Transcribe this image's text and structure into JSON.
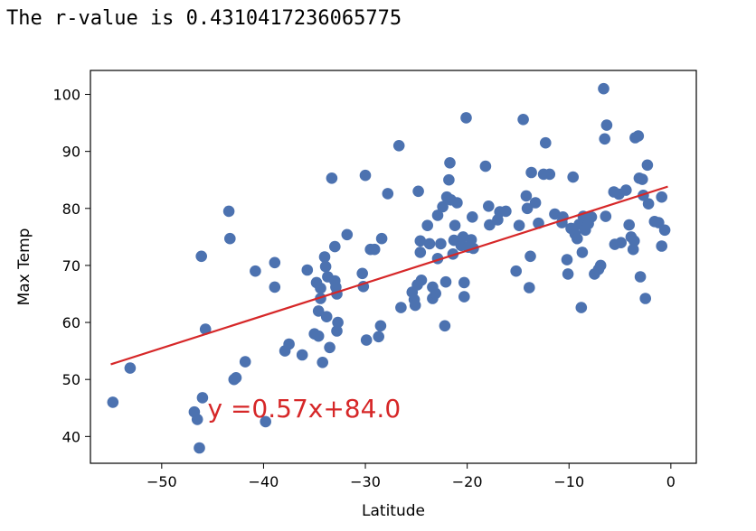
{
  "output": {
    "text": "The r-value is 0.4310417236065775"
  },
  "chart_data": {
    "type": "scatter",
    "title": "",
    "xlabel": "Latitude",
    "ylabel": "Max Temp",
    "xlim": [
      -57,
      2.5
    ],
    "ylim": [
      35.3,
      104.2
    ],
    "xticks": [
      -50,
      -40,
      -30,
      -20,
      -10,
      0
    ],
    "xtick_labels": [
      "−50",
      "−40",
      "−30",
      "−20",
      "−10",
      "0"
    ],
    "yticks": [
      40,
      50,
      60,
      70,
      80,
      90,
      100
    ],
    "ytick_labels": [
      "40",
      "50",
      "60",
      "70",
      "80",
      "90",
      "100"
    ],
    "grid": false,
    "point_color": "#4c72b0",
    "line_color": "#d62728",
    "regression": {
      "slope": 0.57,
      "intercept": 84.0,
      "x_start": -55,
      "x_end": -0.3,
      "equation_text": "y =0.57x+84.0",
      "equation_anchor": [
        -45.5,
        45
      ]
    },
    "points": [
      [
        -54.8,
        46
      ],
      [
        -53.1,
        52
      ],
      [
        -46.8,
        44.3
      ],
      [
        -46.5,
        43
      ],
      [
        -46.3,
        38
      ],
      [
        -46,
        46.8
      ],
      [
        -46.1,
        71.6
      ],
      [
        -45.7,
        58.8
      ],
      [
        -43.4,
        79.5
      ],
      [
        -43.3,
        74.7
      ],
      [
        -42.9,
        50
      ],
      [
        -42.7,
        50.3
      ],
      [
        -41.8,
        53.1
      ],
      [
        -40.8,
        69
      ],
      [
        -39.8,
        42.6
      ],
      [
        -38.9,
        70.5
      ],
      [
        -38.9,
        66.2
      ],
      [
        -37.9,
        55
      ],
      [
        -37.5,
        56.2
      ],
      [
        -36.2,
        54.3
      ],
      [
        -35.7,
        69.2
      ],
      [
        -35,
        58
      ],
      [
        -34.6,
        57.6
      ],
      [
        -34.8,
        67
      ],
      [
        -34.6,
        62
      ],
      [
        -34.4,
        66
      ],
      [
        -34.4,
        64.2
      ],
      [
        -34.2,
        53
      ],
      [
        -34,
        71.5
      ],
      [
        -33.9,
        69.8
      ],
      [
        -33.7,
        68
      ],
      [
        -33.5,
        55.6
      ],
      [
        -33.8,
        61
      ],
      [
        -33.3,
        85.3
      ],
      [
        -33,
        73.3
      ],
      [
        -33,
        67.3
      ],
      [
        -32.9,
        66.2
      ],
      [
        -32.8,
        65
      ],
      [
        -32.8,
        58.5
      ],
      [
        -32.7,
        60
      ],
      [
        -31.8,
        75.4
      ],
      [
        -30.2,
        66.3
      ],
      [
        -30.3,
        68.6
      ],
      [
        -30.0,
        85.8
      ],
      [
        -29.9,
        56.9
      ],
      [
        -29.5,
        72.8
      ],
      [
        -29.1,
        72.8
      ],
      [
        -28.7,
        57.5
      ],
      [
        -28.5,
        59.4
      ],
      [
        -28.4,
        74.7
      ],
      [
        -27.8,
        82.6
      ],
      [
        -26.7,
        91
      ],
      [
        -26.5,
        62.6
      ],
      [
        -25.4,
        65.3
      ],
      [
        -25.2,
        64
      ],
      [
        -25.1,
        63
      ],
      [
        -24.9,
        66.6
      ],
      [
        -24.8,
        83
      ],
      [
        -24.6,
        72.3
      ],
      [
        -24.6,
        74.3
      ],
      [
        -24.5,
        67.4
      ],
      [
        -23.9,
        77
      ],
      [
        -23.7,
        73.8
      ],
      [
        -23.4,
        66.2
      ],
      [
        -23.4,
        64.2
      ],
      [
        -23.1,
        65.1
      ],
      [
        -22.9,
        78.8
      ],
      [
        -22.9,
        71.2
      ],
      [
        -22.6,
        73.8
      ],
      [
        -22.4,
        80.3
      ],
      [
        -22.2,
        59.4
      ],
      [
        -22.1,
        67.1
      ],
      [
        -22,
        82
      ],
      [
        -21.7,
        88
      ],
      [
        -21.8,
        85
      ],
      [
        -21.6,
        81.5
      ],
      [
        -21.4,
        72
      ],
      [
        -21.3,
        74.4
      ],
      [
        -21.2,
        77
      ],
      [
        -21.0,
        81
      ],
      [
        -20.6,
        73.5
      ],
      [
        -20.4,
        75
      ],
      [
        -20.3,
        64.5
      ],
      [
        -20.3,
        67
      ],
      [
        -20.1,
        95.9
      ],
      [
        -19.9,
        73.2
      ],
      [
        -19.6,
        74.5
      ],
      [
        -19.5,
        78.5
      ],
      [
        -19.4,
        73
      ],
      [
        -18.2,
        87.4
      ],
      [
        -17.9,
        80.4
      ],
      [
        -17.8,
        77.1
      ],
      [
        -17,
        78
      ],
      [
        -16.8,
        79.4
      ],
      [
        -16.2,
        79.5
      ],
      [
        -15.2,
        69
      ],
      [
        -14.9,
        77
      ],
      [
        -14.5,
        95.6
      ],
      [
        -14.2,
        82.2
      ],
      [
        -14.1,
        80
      ],
      [
        -13.9,
        66.1
      ],
      [
        -13.8,
        71.6
      ],
      [
        -13.7,
        86.3
      ],
      [
        -13.3,
        81
      ],
      [
        -13.0,
        77.4
      ],
      [
        -12.5,
        86
      ],
      [
        -12.3,
        91.5
      ],
      [
        -11.9,
        86
      ],
      [
        -11.4,
        79
      ],
      [
        -10.7,
        77.5
      ],
      [
        -10.6,
        78.5
      ],
      [
        -10.2,
        71
      ],
      [
        -10.1,
        68.5
      ],
      [
        -9.8,
        76.5
      ],
      [
        -9.6,
        85.5
      ],
      [
        -9.4,
        75.5
      ],
      [
        -9.2,
        74.7
      ],
      [
        -9.0,
        77.2
      ],
      [
        -8.8,
        62.6
      ],
      [
        -8.7,
        72.3
      ],
      [
        -8.6,
        78.6
      ],
      [
        -8.4,
        76.2
      ],
      [
        -8.1,
        77.3
      ],
      [
        -7.8,
        78.5
      ],
      [
        -7.5,
        68.5
      ],
      [
        -7.1,
        69.3
      ],
      [
        -6.9,
        70
      ],
      [
        -6.6,
        101
      ],
      [
        -6.5,
        92.2
      ],
      [
        -6.3,
        94.6
      ],
      [
        -6.4,
        78.6
      ],
      [
        -5.6,
        82.9
      ],
      [
        -5.5,
        73.7
      ],
      [
        -5.1,
        82.5
      ],
      [
        -4.9,
        74
      ],
      [
        -4.4,
        83.2
      ],
      [
        -4.1,
        77.1
      ],
      [
        -3.9,
        75
      ],
      [
        -3.7,
        72.8
      ],
      [
        -3.6,
        74.3
      ],
      [
        -3.5,
        92.4
      ],
      [
        -3.2,
        92.7
      ],
      [
        -3.1,
        85.3
      ],
      [
        -3.0,
        68
      ],
      [
        -2.8,
        85.1
      ],
      [
        -2.7,
        82.3
      ],
      [
        -2.5,
        64.2
      ],
      [
        -2.3,
        87.6
      ],
      [
        -2.2,
        80.8
      ],
      [
        -1.6,
        77.7
      ],
      [
        -1.2,
        77.5
      ],
      [
        -0.9,
        73.4
      ],
      [
        -0.9,
        82
      ],
      [
        -0.6,
        76.2
      ]
    ]
  }
}
